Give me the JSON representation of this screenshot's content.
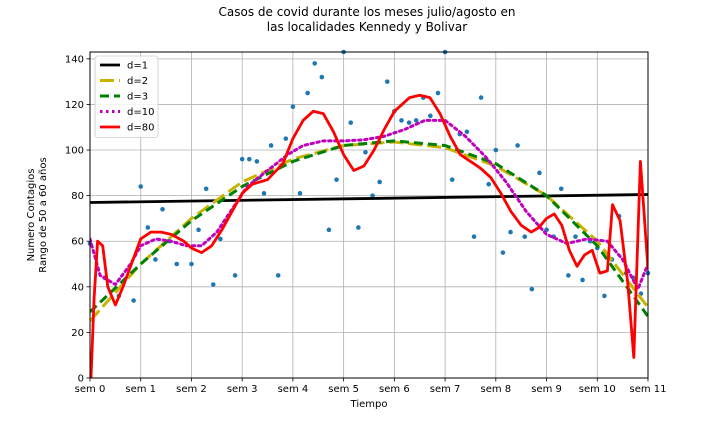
{
  "chart_data": {
    "type": "scatter",
    "title": [
      "Casos de covid durante los meses julio/agosto en",
      "las localidades Kennedy y Bolivar"
    ],
    "xlabel": "Tiempo",
    "ylabel": [
      "Numero Contagios",
      "Rango de 50 a 60 años"
    ],
    "xlim": [
      0,
      11
    ],
    "ylim": [
      0,
      143
    ],
    "x_ticks": [
      {
        "value": 0,
        "label": "sem 0"
      },
      {
        "value": 1,
        "label": "sem 1"
      },
      {
        "value": 2,
        "label": "sem 2"
      },
      {
        "value": 3,
        "label": "sem 3"
      },
      {
        "value": 4,
        "label": "sem 4"
      },
      {
        "value": 5,
        "label": "sem 5"
      },
      {
        "value": 6,
        "label": "sem 6"
      },
      {
        "value": 7,
        "label": "sem 7"
      },
      {
        "value": 8,
        "label": "sem 8"
      },
      {
        "value": 9,
        "label": "sem 9"
      },
      {
        "value": 10,
        "label": "sem 10"
      },
      {
        "value": 11,
        "label": "sem 11"
      }
    ],
    "y_ticks": [
      0,
      20,
      40,
      60,
      80,
      100,
      120,
      140
    ],
    "grid": true,
    "legend_position": "top-left",
    "scatter_color": "#1f77b4",
    "scatter_points": [
      [
        0.0,
        59
      ],
      [
        0.29,
        44
      ],
      [
        0.57,
        36
      ],
      [
        0.86,
        34
      ],
      [
        1.0,
        84
      ],
      [
        1.14,
        66
      ],
      [
        1.29,
        52
      ],
      [
        1.43,
        74
      ],
      [
        1.57,
        60
      ],
      [
        1.71,
        50
      ],
      [
        2.0,
        50
      ],
      [
        2.14,
        65
      ],
      [
        2.29,
        83
      ],
      [
        2.43,
        41
      ],
      [
        2.57,
        61
      ],
      [
        2.86,
        45
      ],
      [
        3.0,
        96
      ],
      [
        3.14,
        96
      ],
      [
        3.29,
        95
      ],
      [
        3.43,
        81
      ],
      [
        3.57,
        102
      ],
      [
        3.71,
        45
      ],
      [
        3.86,
        105
      ],
      [
        4.0,
        119
      ],
      [
        4.14,
        81
      ],
      [
        4.29,
        125
      ],
      [
        4.43,
        138
      ],
      [
        4.57,
        132
      ],
      [
        4.71,
        65
      ],
      [
        4.86,
        87
      ],
      [
        5.0,
        143
      ],
      [
        5.14,
        112
      ],
      [
        5.29,
        66
      ],
      [
        5.43,
        99
      ],
      [
        5.57,
        80
      ],
      [
        5.71,
        86
      ],
      [
        5.86,
        130
      ],
      [
        6.0,
        117
      ],
      [
        6.14,
        113
      ],
      [
        6.29,
        112
      ],
      [
        6.43,
        113
      ],
      [
        6.57,
        123
      ],
      [
        6.71,
        115
      ],
      [
        6.86,
        125
      ],
      [
        7.0,
        143
      ],
      [
        7.14,
        87
      ],
      [
        7.29,
        107
      ],
      [
        7.43,
        108
      ],
      [
        7.57,
        62
      ],
      [
        7.71,
        123
      ],
      [
        7.86,
        85
      ],
      [
        8.0,
        100
      ],
      [
        8.14,
        55
      ],
      [
        8.29,
        64
      ],
      [
        8.43,
        102
      ],
      [
        8.57,
        62
      ],
      [
        8.71,
        39
      ],
      [
        8.86,
        90
      ],
      [
        9.0,
        65
      ],
      [
        9.14,
        62
      ],
      [
        9.29,
        83
      ],
      [
        9.43,
        45
      ],
      [
        9.57,
        62
      ],
      [
        9.71,
        43
      ],
      [
        9.86,
        60
      ],
      [
        10.0,
        57
      ],
      [
        10.14,
        36
      ],
      [
        10.29,
        52
      ],
      [
        10.43,
        71
      ],
      [
        10.57,
        46
      ],
      [
        10.71,
        44
      ],
      [
        10.86,
        37
      ],
      [
        11.0,
        46
      ]
    ],
    "series": [
      {
        "name": "d=1",
        "color": "#000000",
        "dash": "solid",
        "points": [
          [
            0,
            77
          ],
          [
            11,
            80.5
          ]
        ]
      },
      {
        "name": "d=2",
        "color": "#c8b400",
        "dash": "long-dash",
        "points": [
          [
            0,
            25
          ],
          [
            1,
            50
          ],
          [
            2,
            70
          ],
          [
            3,
            86
          ],
          [
            4,
            96
          ],
          [
            5,
            102
          ],
          [
            6,
            103.5
          ],
          [
            7,
            101
          ],
          [
            8,
            93
          ],
          [
            9,
            80
          ],
          [
            10,
            60
          ],
          [
            11,
            31
          ]
        ]
      },
      {
        "name": "d=3",
        "color": "#008000",
        "dash": "dash",
        "points": [
          [
            0,
            29
          ],
          [
            1,
            50
          ],
          [
            2,
            69
          ],
          [
            3,
            84
          ],
          [
            4,
            95
          ],
          [
            5,
            102
          ],
          [
            6,
            104
          ],
          [
            7,
            102
          ],
          [
            8,
            94
          ],
          [
            9,
            80
          ],
          [
            10,
            58
          ],
          [
            11,
            27
          ]
        ]
      },
      {
        "name": "d=10",
        "color": "#bf00bf",
        "dash": "dot",
        "points": [
          [
            0,
            61
          ],
          [
            0.2,
            45
          ],
          [
            0.5,
            41
          ],
          [
            0.8,
            50
          ],
          [
            1.0,
            58
          ],
          [
            1.3,
            61
          ],
          [
            1.6,
            60
          ],
          [
            1.9,
            58
          ],
          [
            2.2,
            58
          ],
          [
            2.5,
            64
          ],
          [
            2.8,
            74
          ],
          [
            3.1,
            84
          ],
          [
            3.5,
            91
          ],
          [
            3.9,
            98
          ],
          [
            4.2,
            102
          ],
          [
            4.6,
            104
          ],
          [
            5.0,
            104
          ],
          [
            5.4,
            104.5
          ],
          [
            5.8,
            106
          ],
          [
            6.2,
            109
          ],
          [
            6.6,
            113
          ],
          [
            7.0,
            113
          ],
          [
            7.4,
            106
          ],
          [
            7.8,
            97
          ],
          [
            8.2,
            86
          ],
          [
            8.6,
            73
          ],
          [
            9.0,
            63
          ],
          [
            9.4,
            59
          ],
          [
            9.8,
            61
          ],
          [
            10.2,
            60
          ],
          [
            10.5,
            52
          ],
          [
            10.8,
            39
          ],
          [
            11.0,
            50
          ]
        ]
      },
      {
        "name": "d=80",
        "color": "#ff0000",
        "dash": "solid",
        "points": [
          [
            0.02,
            0
          ],
          [
            0.08,
            35
          ],
          [
            0.15,
            60
          ],
          [
            0.25,
            58
          ],
          [
            0.35,
            40
          ],
          [
            0.5,
            32
          ],
          [
            0.65,
            40
          ],
          [
            0.85,
            52
          ],
          [
            1.0,
            61
          ],
          [
            1.2,
            64
          ],
          [
            1.4,
            64
          ],
          [
            1.6,
            63
          ],
          [
            1.85,
            60
          ],
          [
            2.0,
            57
          ],
          [
            2.2,
            55
          ],
          [
            2.4,
            58
          ],
          [
            2.6,
            65
          ],
          [
            2.8,
            73
          ],
          [
            3.0,
            81
          ],
          [
            3.2,
            85
          ],
          [
            3.5,
            87
          ],
          [
            3.8,
            94
          ],
          [
            4.0,
            105
          ],
          [
            4.2,
            113
          ],
          [
            4.4,
            117
          ],
          [
            4.6,
            116
          ],
          [
            4.8,
            108
          ],
          [
            5.0,
            98
          ],
          [
            5.2,
            91
          ],
          [
            5.4,
            93
          ],
          [
            5.6,
            100
          ],
          [
            5.8,
            109
          ],
          [
            6.0,
            117
          ],
          [
            6.3,
            123
          ],
          [
            6.5,
            124
          ],
          [
            6.7,
            123
          ],
          [
            6.9,
            116
          ],
          [
            7.1,
            106
          ],
          [
            7.3,
            98
          ],
          [
            7.5,
            95
          ],
          [
            7.7,
            92
          ],
          [
            7.9,
            88
          ],
          [
            8.1,
            81
          ],
          [
            8.3,
            73
          ],
          [
            8.5,
            67
          ],
          [
            8.7,
            64
          ],
          [
            8.85,
            66
          ],
          [
            9.0,
            70
          ],
          [
            9.15,
            72
          ],
          [
            9.3,
            67
          ],
          [
            9.45,
            56
          ],
          [
            9.6,
            49
          ],
          [
            9.75,
            54
          ],
          [
            9.9,
            56
          ],
          [
            10.05,
            46
          ],
          [
            10.2,
            47
          ],
          [
            10.3,
            76
          ],
          [
            10.45,
            69
          ],
          [
            10.6,
            42
          ],
          [
            10.72,
            9
          ],
          [
            10.85,
            95
          ],
          [
            11.0,
            48
          ]
        ]
      }
    ]
  }
}
